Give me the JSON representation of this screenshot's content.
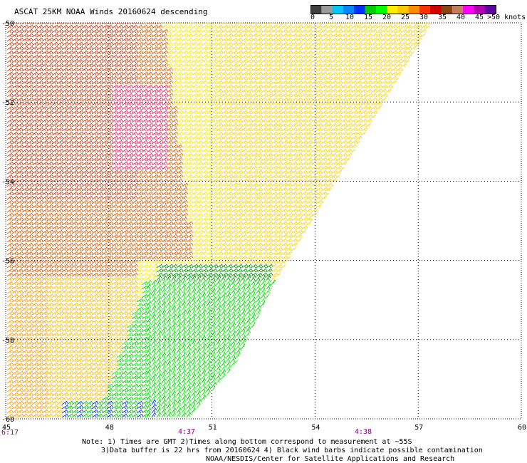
{
  "title": "ASCAT 25KM NOAA Winds 20160624 descending",
  "colorbar": {
    "units": ">50 knots",
    "ticks": [
      "0",
      "5",
      "10",
      "15",
      "20",
      "25",
      "30",
      "35",
      "40",
      "45"
    ],
    "colors": [
      "#404040",
      "#9a9a9a",
      "#00c8ff",
      "#0088ff",
      "#0030ff",
      "#00cc00",
      "#00ff00",
      "#ffee00",
      "#ffc800",
      "#ff8c00",
      "#ff3000",
      "#d00000",
      "#8b4513",
      "#c08060",
      "#ff00ff",
      "#b000b0",
      "#6000a0"
    ]
  },
  "map": {
    "lat_labels": [
      "-50",
      "-52",
      "-54",
      "-56",
      "-58",
      "-60"
    ],
    "lon_labels": [
      "45",
      "48",
      "51",
      "54",
      "57",
      "60"
    ],
    "time_labels": [
      "6:17",
      "4:37",
      "4:38"
    ],
    "time_label_color": "#800080"
  },
  "notes": {
    "line1": "Note: 1) Times are GMT 2)Times along bottom correspond to measurement at ~55S",
    "line2": "3)Data buffer is 22 hrs from 20160624 4) Black wind barbs indicate possible contamination",
    "line3": "NOAA/NESDIS/Center for Satellite Applications and Research"
  }
}
